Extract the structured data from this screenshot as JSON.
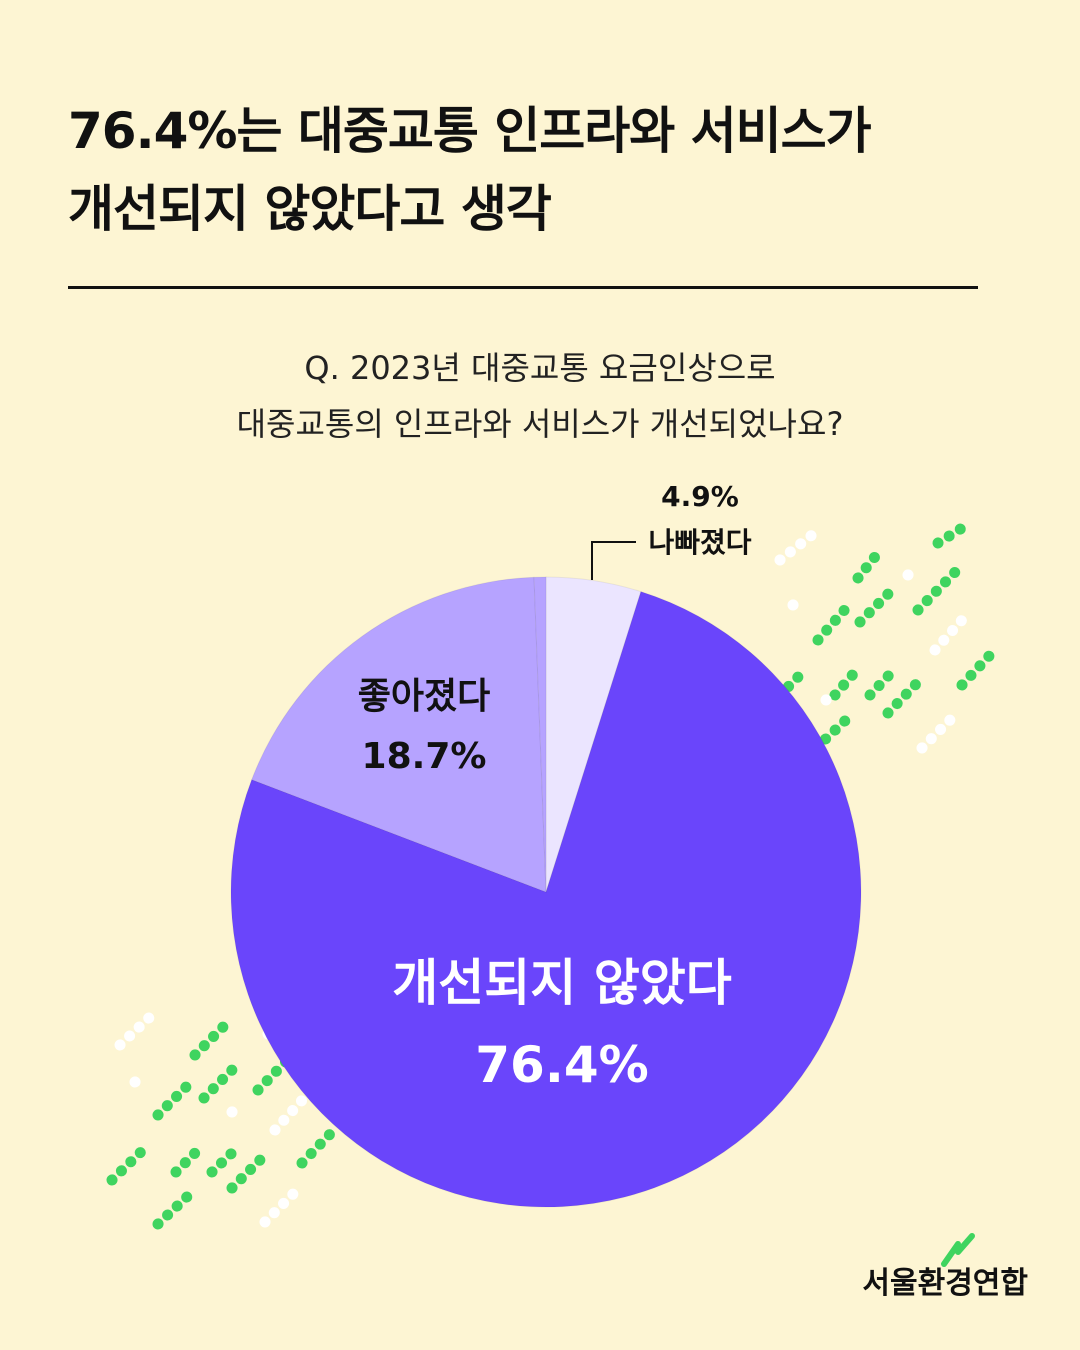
{
  "headline": {
    "line1": "76.4%는 대중교통 인프라와 서비스가",
    "line2": "개선되지 않았다고 생각"
  },
  "question": {
    "line1": "Q. 2023년 대중교통 요금인상으로",
    "line2": "대중교통의 인프라와 서비스가 개선되었나요?"
  },
  "chart_data": {
    "type": "pie",
    "slices": [
      {
        "label": "개선되지 않았다",
        "value": 76.4,
        "value_label": "76.4%",
        "color": "#6a45fb"
      },
      {
        "label": "좋아졌다",
        "value": 18.7,
        "value_label": "18.7%",
        "color": "#b6a3ff"
      },
      {
        "label": "",
        "value": 0.0,
        "value_label": "",
        "color": "#b6a3ff"
      },
      {
        "label": "나빠졌다",
        "value": 4.9,
        "value_label": "4.9%",
        "color": "#ebe5ff"
      }
    ]
  },
  "colors": {
    "background": "#fdf5d3",
    "accent_green": "#3fd45f"
  },
  "logo": {
    "text": "서울환경연합"
  }
}
